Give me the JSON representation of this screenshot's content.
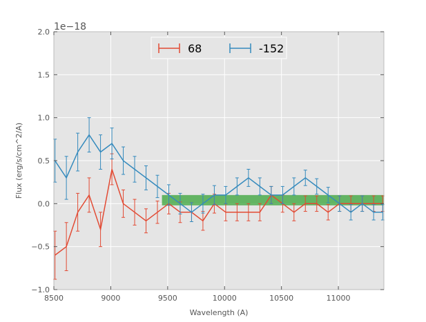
{
  "chart_data": {
    "type": "line",
    "title": "",
    "xlabel": "Wavelength (A)",
    "ylabel": "Flux (erg/s/cm^2/A)",
    "y_offset_label": "1e−18",
    "xlim": [
      8500,
      11400
    ],
    "ylim": [
      -1.0,
      2.0
    ],
    "x_ticks": [
      8500,
      9000,
      9500,
      10000,
      10500,
      11000
    ],
    "x_tick_labels": [
      "8500",
      "9000",
      "9500",
      "10000",
      "10500",
      "11000"
    ],
    "y_ticks": [
      -1.0,
      -0.5,
      0.0,
      0.5,
      1.0,
      1.5,
      2.0
    ],
    "y_tick_labels": [
      "−1.0",
      "−0.5",
      "0.0",
      "0.5",
      "1.0",
      "1.5",
      "2.0"
    ],
    "grid": true,
    "background": "#e5e5e5",
    "legend_position": "top-center",
    "band": {
      "x": [
        9450,
        11400
      ],
      "y": [
        -0.02,
        0.1
      ],
      "color": "#2ca02c"
    },
    "series": [
      {
        "name": "68",
        "color": "#e24a33",
        "x": [
          8510,
          8610,
          8710,
          8810,
          8910,
          9010,
          9110,
          9210,
          9310,
          9410,
          9510,
          9610,
          9710,
          9810,
          9910,
          10010,
          10110,
          10210,
          10310,
          10410,
          10510,
          10610,
          10710,
          10810,
          10910,
          11010,
          11110,
          11210,
          11310,
          11390
        ],
        "y": [
          -0.6,
          -0.5,
          -0.1,
          0.1,
          -0.3,
          0.4,
          0.0,
          -0.1,
          -0.2,
          -0.1,
          0.0,
          -0.1,
          -0.1,
          -0.2,
          0.0,
          -0.1,
          -0.1,
          -0.1,
          -0.1,
          0.1,
          0.0,
          -0.1,
          0.0,
          0.0,
          -0.1,
          0.0,
          0.0,
          0.0,
          0.0,
          0.0
        ],
        "err": [
          0.28,
          0.28,
          0.22,
          0.2,
          0.2,
          0.18,
          0.16,
          0.15,
          0.14,
          0.13,
          0.12,
          0.12,
          0.11,
          0.11,
          0.11,
          0.1,
          0.1,
          0.1,
          0.1,
          0.1,
          0.1,
          0.1,
          0.09,
          0.09,
          0.09,
          0.09,
          0.09,
          0.09,
          0.09,
          0.09
        ]
      },
      {
        "name": "-152",
        "color": "#348abd",
        "x": [
          8510,
          8610,
          8710,
          8810,
          8910,
          9010,
          9110,
          9210,
          9310,
          9410,
          9510,
          9610,
          9710,
          9810,
          9910,
          10010,
          10110,
          10210,
          10310,
          10410,
          10510,
          10610,
          10710,
          10810,
          10910,
          11010,
          11110,
          11210,
          11310,
          11390
        ],
        "y": [
          0.5,
          0.3,
          0.6,
          0.8,
          0.6,
          0.7,
          0.5,
          0.4,
          0.3,
          0.2,
          0.1,
          0.0,
          -0.1,
          0.0,
          0.1,
          0.1,
          0.2,
          0.3,
          0.2,
          0.1,
          0.1,
          0.2,
          0.3,
          0.2,
          0.1,
          0.0,
          -0.1,
          0.0,
          -0.1,
          -0.1
        ],
        "err": [
          0.25,
          0.25,
          0.22,
          0.2,
          0.2,
          0.18,
          0.16,
          0.15,
          0.14,
          0.13,
          0.12,
          0.12,
          0.11,
          0.11,
          0.11,
          0.1,
          0.1,
          0.1,
          0.1,
          0.1,
          0.1,
          0.1,
          0.09,
          0.09,
          0.09,
          0.09,
          0.09,
          0.09,
          0.09,
          0.09
        ]
      }
    ]
  }
}
